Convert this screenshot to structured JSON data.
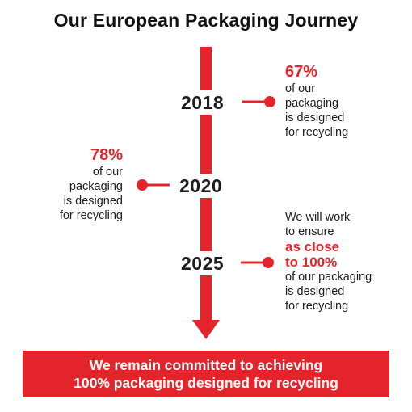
{
  "title": "Our European Packaging Journey",
  "colors": {
    "accent": "#e3242b",
    "text": "#1e1e1e",
    "banner_text": "#ffffff"
  },
  "milestones": [
    {
      "year": "2018",
      "side": "right",
      "lines": [
        "67%",
        "of our",
        "packaging",
        "is designed",
        "for recycling"
      ]
    },
    {
      "year": "2020",
      "side": "left",
      "lines": [
        "78%",
        "of our",
        "packaging",
        "is designed",
        "for recycling"
      ]
    },
    {
      "year": "2025",
      "side": "right",
      "lines": [
        "We will work",
        "to ensure",
        "as close",
        "to 100%",
        "of our packaging",
        "is designed",
        "for recycling"
      ]
    }
  ],
  "banner": {
    "line1": "We remain committed to achieving",
    "line2": "100% packaging designed for recycling"
  }
}
